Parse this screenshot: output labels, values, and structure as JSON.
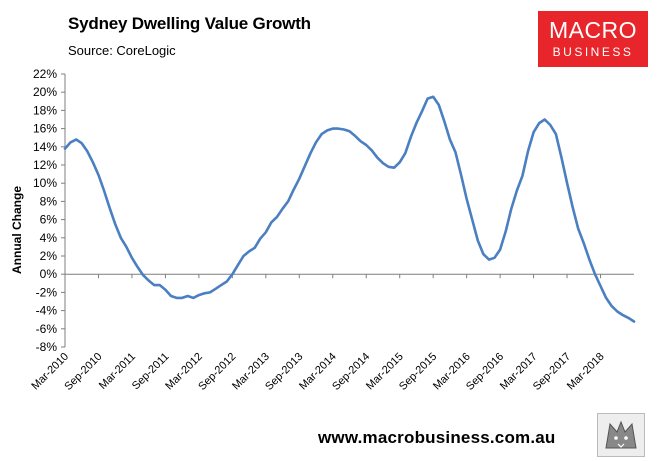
{
  "header": {
    "title": "Sydney Dwelling Value Growth",
    "source": "Source: CoreLogic"
  },
  "brand": {
    "line1": "MACRO",
    "line2": "BUSINESS",
    "color": "#e8252a"
  },
  "footer": {
    "url": "www.macrobusiness.com.au"
  },
  "chart_data": {
    "type": "line",
    "title": "Sydney Dwelling Value Growth",
    "subtitle": "Source: CoreLogic",
    "ylabel": "Annual Change",
    "xlabel": "",
    "ylim": [
      -8,
      22
    ],
    "yticks": [
      "22%",
      "20%",
      "18%",
      "16%",
      "14%",
      "12%",
      "10%",
      "8%",
      "6%",
      "4%",
      "2%",
      "0%",
      "-2%",
      "-4%",
      "-6%",
      "-8%"
    ],
    "xtick_labels": [
      "Mar-2010",
      "Sep-2010",
      "Mar-2011",
      "Sep-2011",
      "Mar-2012",
      "Sep-2012",
      "Mar-2013",
      "Sep-2013",
      "Mar-2014",
      "Sep-2014",
      "Mar-2015",
      "Sep-2015",
      "Mar-2016",
      "Sep-2016",
      "Mar-2017",
      "Sep-2017",
      "Mar-2018"
    ],
    "x_start": "Mar-2010",
    "x_end": "Oct-2018",
    "grid": false,
    "line_color": "#4a7fc1",
    "series": [
      {
        "name": "",
        "values": [
          13.8,
          14.5,
          14.8,
          14.4,
          13.5,
          12.3,
          10.9,
          9.2,
          7.3,
          5.5,
          4.0,
          3.0,
          1.8,
          0.8,
          -0.1,
          -0.7,
          -1.2,
          -1.2,
          -1.7,
          -2.4,
          -2.6,
          -2.6,
          -2.4,
          -2.6,
          -2.3,
          -2.1,
          -2.0,
          -1.6,
          -1.2,
          -0.8,
          0.0,
          1.0,
          2.0,
          2.5,
          2.9,
          3.9,
          4.6,
          5.7,
          6.3,
          7.2,
          8.0,
          9.3,
          10.5,
          11.9,
          13.3,
          14.5,
          15.4,
          15.8,
          16.0,
          16.0,
          15.9,
          15.7,
          15.2,
          14.6,
          14.2,
          13.6,
          12.8,
          12.2,
          11.8,
          11.7,
          12.3,
          13.3,
          15.1,
          16.6,
          17.9,
          19.3,
          19.5,
          18.6,
          16.8,
          14.8,
          13.4,
          10.9,
          8.3,
          6.0,
          3.7,
          2.2,
          1.6,
          1.8,
          2.7,
          4.7,
          7.2,
          9.2,
          10.8,
          13.5,
          15.6,
          16.6,
          17.0,
          16.4,
          15.4,
          12.8,
          10.0,
          7.4,
          5.0,
          3.4,
          1.6,
          0.0,
          -1.3,
          -2.6,
          -3.5,
          -4.1,
          -4.5,
          -4.8,
          -5.2
        ]
      }
    ]
  }
}
